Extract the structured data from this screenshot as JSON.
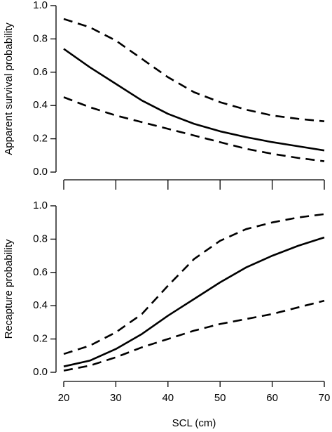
{
  "chart_data": [
    {
      "type": "line",
      "ylabel": "Apparent survival probability",
      "x": [
        20,
        25,
        30,
        35,
        40,
        45,
        50,
        55,
        60,
        65,
        70
      ],
      "series": [
        {
          "color": "#000000",
          "dash": false,
          "values": [
            0.74,
            0.63,
            0.53,
            0.43,
            0.35,
            0.29,
            0.245,
            0.21,
            0.18,
            0.155,
            0.13
          ]
        },
        {
          "color": "#000000",
          "dash": true,
          "values": [
            0.92,
            0.87,
            0.79,
            0.68,
            0.57,
            0.48,
            0.42,
            0.375,
            0.34,
            0.32,
            0.305
          ]
        },
        {
          "color": "#000000",
          "dash": true,
          "values": [
            0.45,
            0.39,
            0.34,
            0.3,
            0.26,
            0.22,
            0.18,
            0.14,
            0.11,
            0.085,
            0.065
          ]
        }
      ],
      "xlim": [
        20,
        70
      ],
      "ylim": [
        0,
        1
      ],
      "yticks": [
        {
          "value": 0,
          "label": "0.0"
        },
        0.2,
        0.4,
        0.6,
        0.8,
        {
          "value": 1,
          "label": "1.0"
        }
      ]
    },
    {
      "type": "line",
      "ylabel": "Recapture probability",
      "xlabel": "SCL (cm)",
      "x": [
        20,
        25,
        30,
        35,
        40,
        45,
        50,
        55,
        60,
        65,
        70
      ],
      "series": [
        {
          "color": "#000000",
          "dash": false,
          "values": [
            0.035,
            0.07,
            0.14,
            0.23,
            0.34,
            0.44,
            0.54,
            0.63,
            0.7,
            0.76,
            0.81
          ]
        },
        {
          "color": "#000000",
          "dash": true,
          "values": [
            0.11,
            0.16,
            0.24,
            0.35,
            0.52,
            0.68,
            0.79,
            0.86,
            0.9,
            0.93,
            0.95
          ]
        },
        {
          "color": "#000000",
          "dash": true,
          "values": [
            0.01,
            0.04,
            0.09,
            0.15,
            0.2,
            0.25,
            0.29,
            0.32,
            0.35,
            0.39,
            0.43
          ]
        }
      ],
      "xlim": [
        20,
        70
      ],
      "ylim": [
        0,
        1
      ],
      "xticks": [
        20,
        30,
        40,
        50,
        60,
        70
      ],
      "yticks": [
        {
          "value": 0,
          "label": "0.0"
        },
        0.2,
        0.4,
        0.6,
        0.8,
        {
          "value": 1,
          "label": "1.0"
        }
      ]
    }
  ]
}
